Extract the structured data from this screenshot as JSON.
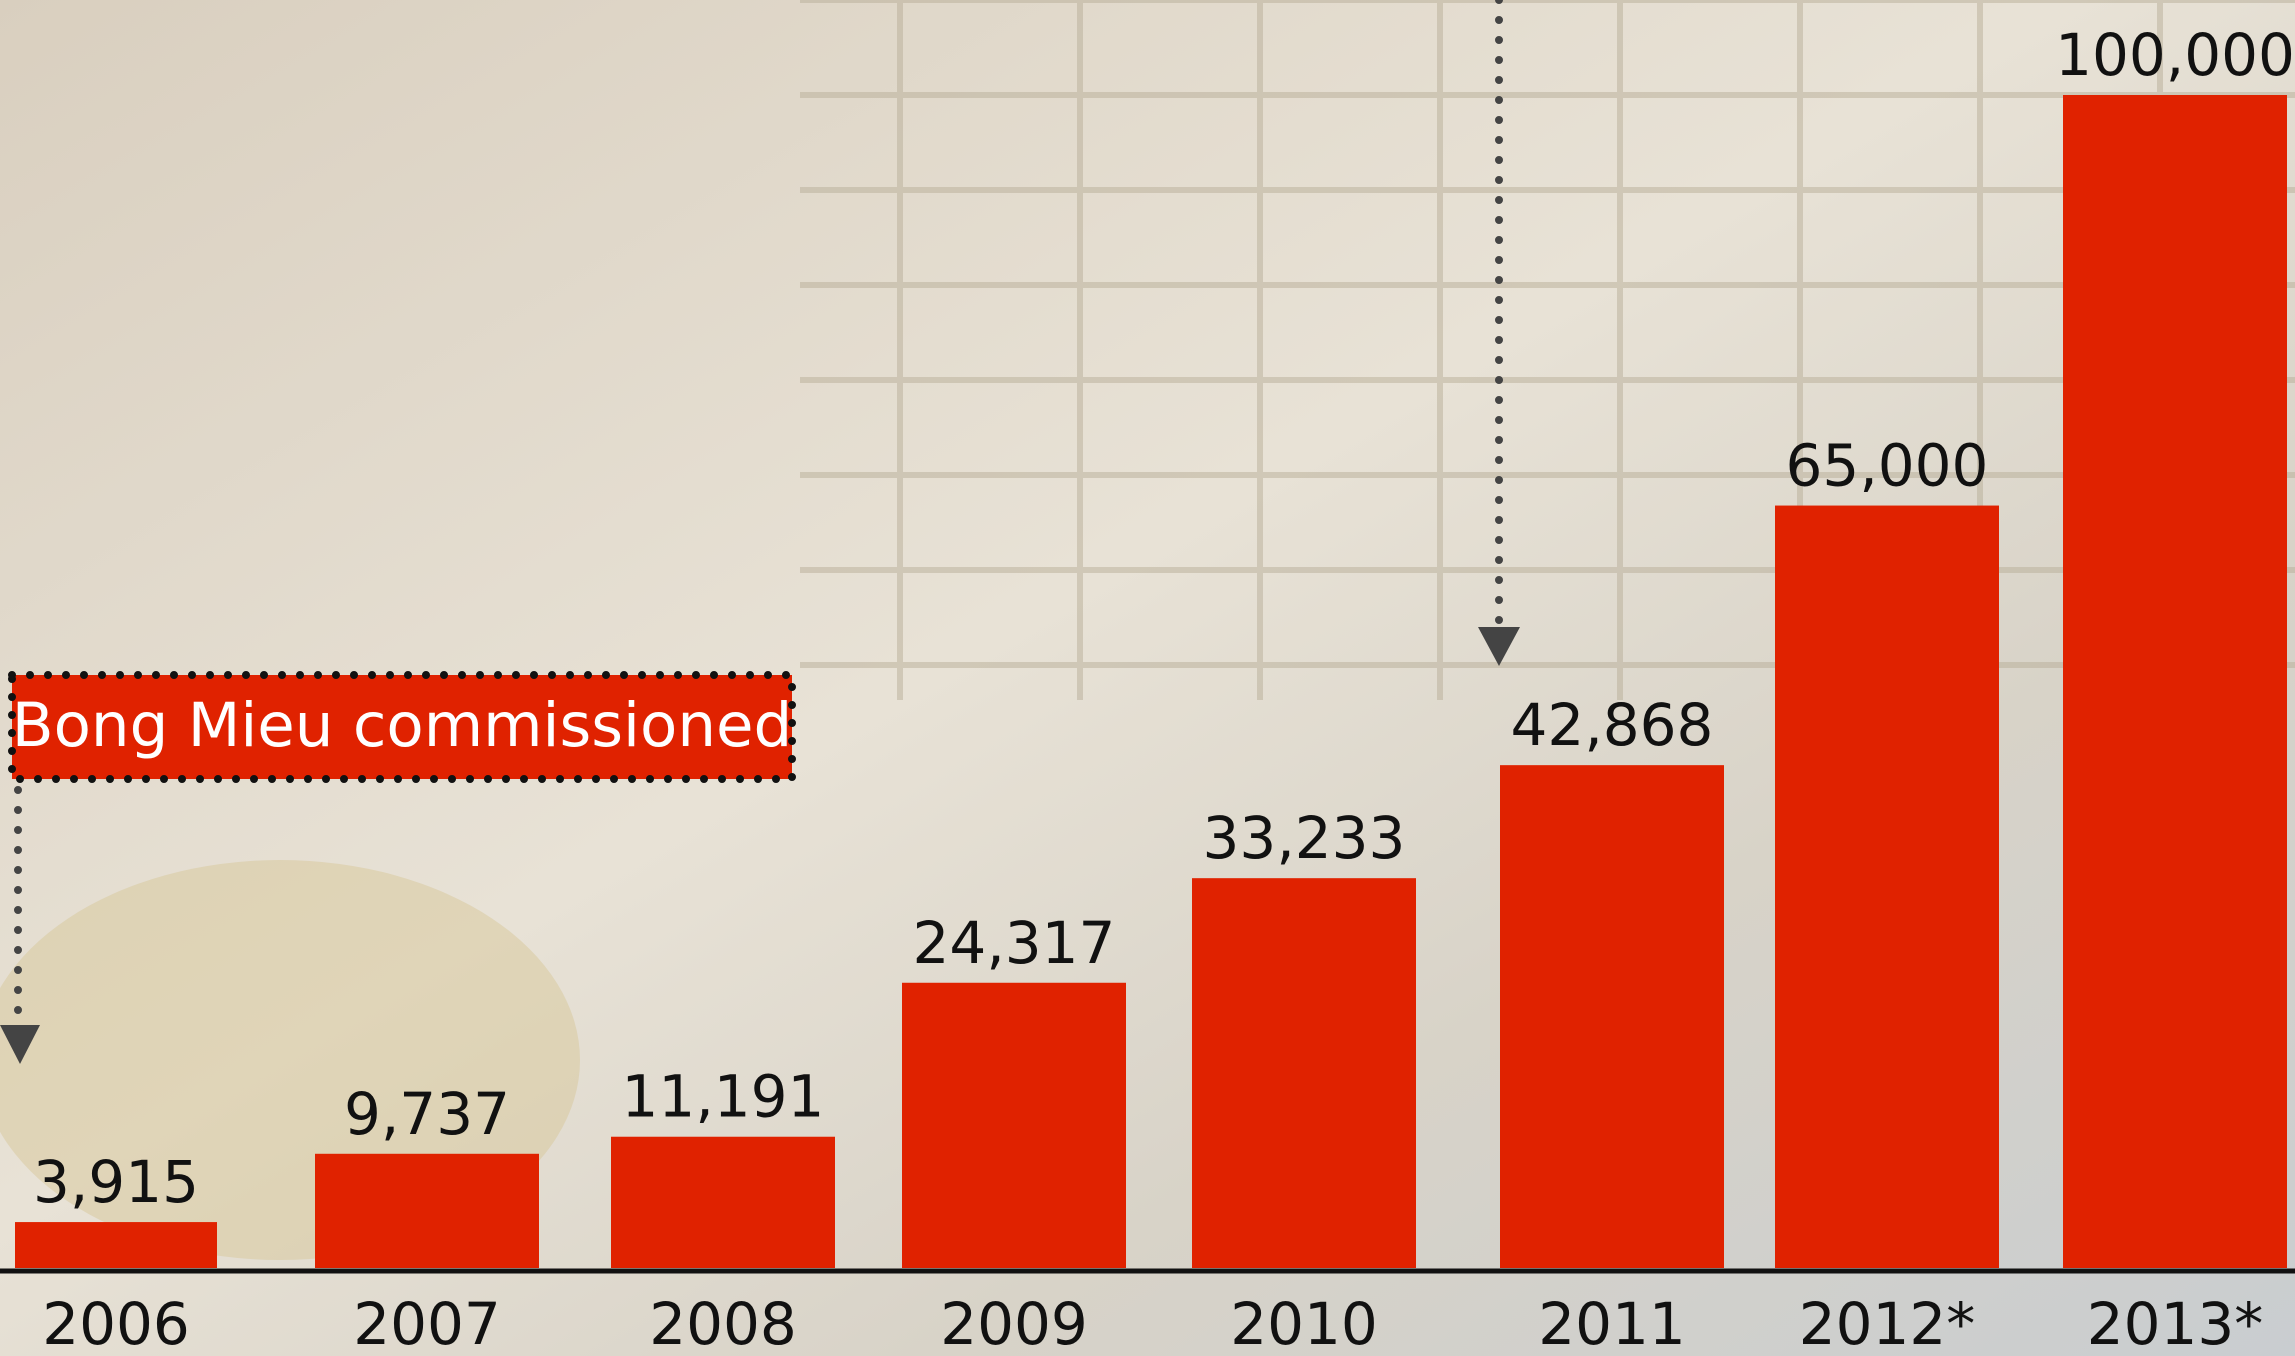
{
  "chart_data": {
    "type": "bar",
    "categories": [
      "2006",
      "2007",
      "2008",
      "2009",
      "2010",
      "2011",
      "2012*",
      "2013*"
    ],
    "values": [
      3915,
      9737,
      11191,
      24317,
      33233,
      42868,
      65000,
      100000
    ],
    "value_labels": [
      "3,915",
      "9,737",
      "11,191",
      "24,317",
      "33,233",
      "42,868",
      "65,000",
      "100,000"
    ],
    "color": "#e02200",
    "ylim": [
      0,
      100000
    ],
    "annotation": "Bong Mieu commissioned"
  }
}
